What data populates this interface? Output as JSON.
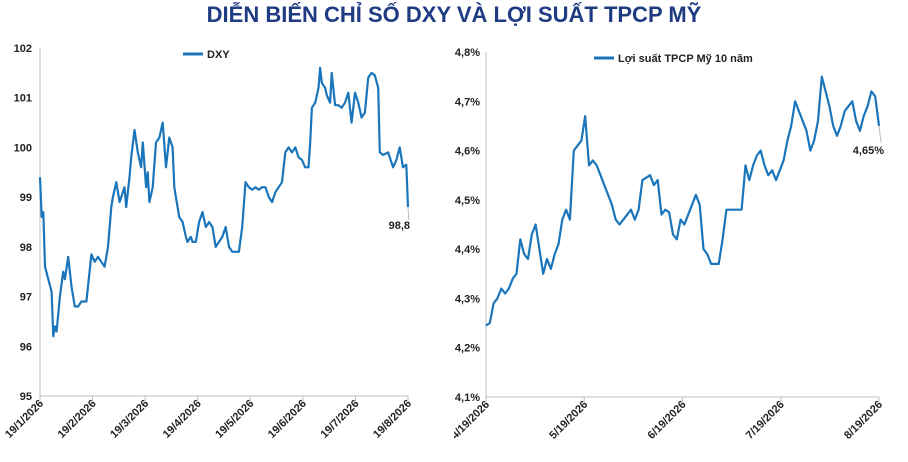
{
  "title": "DIỄN BIẾN CHỈ SỐ DXY VÀ LỢI SUẤT TPCP MỸ",
  "colors": {
    "title": "#1f3b82",
    "line": "#1b75bb",
    "axis": "#bfbfbf"
  },
  "chart_data": [
    {
      "type": "line",
      "legend": "DXY",
      "legend_position": "top",
      "grid": false,
      "ylim": [
        95,
        102
      ],
      "y_ticks": [
        "95",
        "96",
        "97",
        "98",
        "99",
        "100",
        "101",
        "102"
      ],
      "x_ticks": [
        "19/1/2026",
        "19/2/2026",
        "19/3/2026",
        "19/4/2026",
        "19/5/2026",
        "19/6/2026",
        "19/7/2026",
        "19/8/2026"
      ],
      "end_label": "98,8",
      "series": [
        {
          "name": "DXY",
          "values": [
            [
              0,
              99.4
            ],
            [
              0.5,
              98.6
            ],
            [
              1,
              98.7
            ],
            [
              1.5,
              97.6
            ],
            [
              2.5,
              97.35
            ],
            [
              3.5,
              97.1
            ],
            [
              4,
              96.2
            ],
            [
              4.5,
              96.4
            ],
            [
              5,
              96.3
            ],
            [
              6,
              97.0
            ],
            [
              7,
              97.5
            ],
            [
              7.5,
              97.35
            ],
            [
              8.5,
              97.8
            ],
            [
              9.5,
              97.2
            ],
            [
              10.5,
              96.8
            ],
            [
              11.5,
              96.8
            ],
            [
              12.5,
              96.9
            ],
            [
              14,
              96.9
            ],
            [
              15.5,
              97.85
            ],
            [
              16.5,
              97.7
            ],
            [
              17.5,
              97.8
            ],
            [
              18.5,
              97.7
            ],
            [
              19.5,
              97.6
            ],
            [
              20.5,
              98.0
            ],
            [
              21.5,
              98.8
            ],
            [
              22,
              99.0
            ],
            [
              23,
              99.3
            ],
            [
              24,
              98.9
            ],
            [
              25.5,
              99.2
            ],
            [
              26,
              98.8
            ],
            [
              27,
              99.4
            ],
            [
              27.5,
              99.8
            ],
            [
              28.5,
              100.35
            ],
            [
              29.5,
              99.9
            ],
            [
              30.5,
              99.6
            ],
            [
              31,
              100.1
            ],
            [
              32,
              99.2
            ],
            [
              32.5,
              99.5
            ],
            [
              33,
              98.9
            ],
            [
              34,
              99.2
            ],
            [
              35,
              100.1
            ],
            [
              36,
              100.2
            ],
            [
              37,
              100.5
            ],
            [
              38,
              99.6
            ],
            [
              39,
              100.2
            ],
            [
              40,
              100.0
            ],
            [
              40.5,
              99.2
            ],
            [
              41,
              99.0
            ],
            [
              42,
              98.6
            ],
            [
              43,
              98.5
            ],
            [
              44,
              98.2
            ],
            [
              44.5,
              98.1
            ],
            [
              45.5,
              98.2
            ],
            [
              46,
              98.1
            ],
            [
              47,
              98.1
            ],
            [
              48,
              98.5
            ],
            [
              49,
              98.7
            ],
            [
              50,
              98.4
            ],
            [
              51,
              98.5
            ],
            [
              52,
              98.4
            ],
            [
              53,
              98.0
            ],
            [
              55,
              98.2
            ],
            [
              56,
              98.4
            ],
            [
              57,
              98.0
            ],
            [
              58,
              97.9
            ],
            [
              60,
              97.9
            ],
            [
              61,
              98.4
            ],
            [
              62,
              99.3
            ],
            [
              63,
              99.2
            ],
            [
              64,
              99.15
            ],
            [
              65,
              99.2
            ],
            [
              66,
              99.15
            ],
            [
              67,
              99.2
            ],
            [
              68,
              99.2
            ],
            [
              69,
              99.0
            ],
            [
              70,
              98.9
            ],
            [
              71,
              99.1
            ],
            [
              72,
              99.2
            ],
            [
              73,
              99.3
            ],
            [
              74,
              99.9
            ],
            [
              75,
              100.0
            ],
            [
              76,
              99.9
            ],
            [
              77,
              100.0
            ],
            [
              78,
              99.8
            ],
            [
              79,
              99.75
            ],
            [
              80,
              99.6
            ],
            [
              81,
              99.6
            ],
            [
              81.5,
              100.1
            ],
            [
              82,
              100.8
            ],
            [
              83,
              100.9
            ],
            [
              84,
              101.2
            ],
            [
              84.5,
              101.6
            ],
            [
              85,
              101.3
            ],
            [
              86,
              101.2
            ],
            [
              86.5,
              101.05
            ],
            [
              87.5,
              100.9
            ],
            [
              88,
              101.5
            ],
            [
              89,
              100.85
            ],
            [
              90,
              100.85
            ],
            [
              91,
              100.8
            ],
            [
              92,
              100.9
            ],
            [
              93,
              101.1
            ],
            [
              94,
              100.5
            ],
            [
              95,
              101.1
            ],
            [
              96,
              100.9
            ],
            [
              97,
              100.6
            ],
            [
              98,
              100.7
            ],
            [
              99,
              101.4
            ],
            [
              100,
              101.5
            ],
            [
              101,
              101.45
            ],
            [
              102,
              101.2
            ],
            [
              102.5,
              99.9
            ],
            [
              103.5,
              99.85
            ],
            [
              105,
              99.9
            ],
            [
              106.5,
              99.6
            ],
            [
              107.5,
              99.75
            ],
            [
              108.5,
              100.0
            ],
            [
              109.5,
              99.6
            ],
            [
              110.5,
              99.65
            ],
            [
              111,
              98.8
            ]
          ]
        }
      ]
    },
    {
      "type": "line",
      "legend": "Lợi suất TPCP Mỹ 10 năm",
      "legend_position": "top",
      "grid": false,
      "ylim": [
        4.1,
        4.8
      ],
      "y_ticks": [
        "4,1%",
        "4,2%",
        "4,3%",
        "4,4%",
        "4,5%",
        "4,6%",
        "4,7%",
        "4,8%"
      ],
      "x_ticks": [
        "4/19/2026",
        "5/19/2026",
        "6/19/2026",
        "7/19/2026",
        "8/19/2026"
      ],
      "end_label": "4,65%",
      "series": [
        {
          "name": "Lợi suất TPCP Mỹ 10 năm",
          "values": [
            [
              0,
              4.245
            ],
            [
              1,
              4.25
            ],
            [
              2,
              4.29
            ],
            [
              3,
              4.3
            ],
            [
              4,
              4.32
            ],
            [
              5,
              4.31
            ],
            [
              6,
              4.32
            ],
            [
              7,
              4.34
            ],
            [
              8,
              4.35
            ],
            [
              9,
              4.42
            ],
            [
              10,
              4.39
            ],
            [
              11,
              4.38
            ],
            [
              12,
              4.43
            ],
            [
              13,
              4.45
            ],
            [
              14,
              4.4
            ],
            [
              15,
              4.35
            ],
            [
              16,
              4.38
            ],
            [
              17,
              4.36
            ],
            [
              18,
              4.39
            ],
            [
              19,
              4.41
            ],
            [
              20,
              4.46
            ],
            [
              21,
              4.48
            ],
            [
              22,
              4.46
            ],
            [
              23,
              4.6
            ],
            [
              24,
              4.61
            ],
            [
              25,
              4.62
            ],
            [
              26,
              4.67
            ],
            [
              27,
              4.57
            ],
            [
              28,
              4.58
            ],
            [
              29,
              4.57
            ],
            [
              30,
              4.55
            ],
            [
              31,
              4.53
            ],
            [
              32,
              4.51
            ],
            [
              33,
              4.49
            ],
            [
              34,
              4.46
            ],
            [
              35,
              4.45
            ],
            [
              36,
              4.46
            ],
            [
              37,
              4.47
            ],
            [
              38,
              4.48
            ],
            [
              39,
              4.46
            ],
            [
              40,
              4.48
            ],
            [
              41,
              4.54
            ],
            [
              42,
              4.545
            ],
            [
              43,
              4.55
            ],
            [
              44,
              4.53
            ],
            [
              45,
              4.54
            ],
            [
              46,
              4.47
            ],
            [
              47,
              4.48
            ],
            [
              48,
              4.475
            ],
            [
              49,
              4.43
            ],
            [
              50,
              4.42
            ],
            [
              51,
              4.46
            ],
            [
              52,
              4.45
            ],
            [
              53,
              4.47
            ],
            [
              54,
              4.49
            ],
            [
              55,
              4.51
            ],
            [
              56,
              4.49
            ],
            [
              57,
              4.4
            ],
            [
              58,
              4.39
            ],
            [
              59,
              4.37
            ],
            [
              60,
              4.37
            ],
            [
              61,
              4.37
            ],
            [
              62,
              4.42
            ],
            [
              63,
              4.48
            ],
            [
              64,
              4.48
            ],
            [
              65,
              4.48
            ],
            [
              66,
              4.48
            ],
            [
              67,
              4.48
            ],
            [
              68,
              4.57
            ],
            [
              69,
              4.54
            ],
            [
              70,
              4.57
            ],
            [
              71,
              4.59
            ],
            [
              72,
              4.6
            ],
            [
              73,
              4.57
            ],
            [
              74,
              4.55
            ],
            [
              75,
              4.56
            ],
            [
              76,
              4.54
            ],
            [
              77,
              4.56
            ],
            [
              78,
              4.58
            ],
            [
              79,
              4.62
            ],
            [
              80,
              4.65
            ],
            [
              81,
              4.7
            ],
            [
              82,
              4.68
            ],
            [
              83,
              4.66
            ],
            [
              84,
              4.64
            ],
            [
              85,
              4.6
            ],
            [
              86,
              4.62
            ],
            [
              87,
              4.66
            ],
            [
              88,
              4.75
            ],
            [
              89,
              4.72
            ],
            [
              90,
              4.69
            ],
            [
              91,
              4.65
            ],
            [
              92,
              4.63
            ],
            [
              93,
              4.65
            ],
            [
              94,
              4.68
            ],
            [
              95,
              4.69
            ],
            [
              96,
              4.7
            ],
            [
              97,
              4.66
            ],
            [
              98,
              4.64
            ],
            [
              99,
              4.67
            ],
            [
              100,
              4.69
            ],
            [
              101,
              4.72
            ],
            [
              102,
              4.71
            ],
            [
              103,
              4.65
            ]
          ]
        }
      ]
    }
  ]
}
